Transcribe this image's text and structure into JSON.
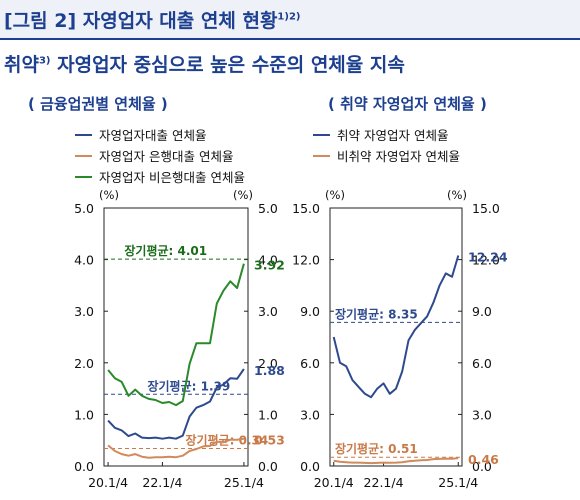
{
  "header": {
    "figure_title": "[그림 2] 자영업자 대출 연체 현황",
    "figure_title_note": "1)2)",
    "subtitle_pre": "취약",
    "subtitle_note": "3)",
    "subtitle_post": " 자영업자 중심으로 높은 수준의 연체율 지속"
  },
  "colors": {
    "accent": "#1d3f8f",
    "blue": "#2e4a8e",
    "orange": "#d08a5c",
    "green": "#2a8a2a",
    "dark_green": "#1a6b1a",
    "orange_text": "#c87a48"
  },
  "chart_data": [
    {
      "type": "line",
      "subtitle": "( 금융업권별  연체율 )",
      "y_unit_left": "(%)",
      "y_unit_right": "(%)",
      "ylim": [
        0,
        5
      ],
      "yticks": [
        "0.0",
        "1.0",
        "2.0",
        "3.0",
        "4.0",
        "5.0"
      ],
      "x_ticks": [
        {
          "x": 2020.0,
          "label": "20.1/4"
        },
        {
          "x": 2022.0,
          "label": "22.1/4"
        },
        {
          "x": 2025.0,
          "label": "25.1/4"
        }
      ],
      "xlim": [
        2019.85,
        2025.15
      ],
      "series": [
        {
          "name": "자영업자대출  연체율",
          "color_key": "blue",
          "x": [
            2020.0,
            2020.25,
            2020.5,
            2020.75,
            2021.0,
            2021.25,
            2021.5,
            2021.75,
            2022.0,
            2022.25,
            2022.5,
            2022.75,
            2023.0,
            2023.25,
            2023.5,
            2023.75,
            2024.0,
            2024.25,
            2024.5,
            2024.75,
            2025.0
          ],
          "values": [
            0.88,
            0.74,
            0.69,
            0.58,
            0.63,
            0.55,
            0.54,
            0.55,
            0.53,
            0.55,
            0.53,
            0.59,
            0.96,
            1.13,
            1.18,
            1.25,
            1.52,
            1.58,
            1.7,
            1.69,
            1.88
          ],
          "end_label": "1.88"
        },
        {
          "name": "자영업자 은행대출 연체율",
          "color_key": "orange",
          "x": [
            2020.0,
            2020.25,
            2020.5,
            2020.75,
            2021.0,
            2021.25,
            2021.5,
            2021.75,
            2022.0,
            2022.25,
            2022.5,
            2022.75,
            2023.0,
            2023.25,
            2023.5,
            2023.75,
            2024.0,
            2024.25,
            2024.5,
            2024.75,
            2025.0
          ],
          "values": [
            0.4,
            0.29,
            0.23,
            0.2,
            0.23,
            0.18,
            0.16,
            0.17,
            0.17,
            0.18,
            0.17,
            0.2,
            0.29,
            0.33,
            0.38,
            0.39,
            0.47,
            0.46,
            0.51,
            0.51,
            0.53
          ],
          "end_label": "0.53"
        },
        {
          "name": "자영업자 비은행대출 연체율",
          "color_key": "green",
          "x": [
            2020.0,
            2020.25,
            2020.5,
            2020.75,
            2021.0,
            2021.25,
            2021.5,
            2021.75,
            2022.0,
            2022.25,
            2022.5,
            2022.75,
            2023.0,
            2023.25,
            2023.5,
            2023.75,
            2024.0,
            2024.25,
            2024.5,
            2024.75,
            2025.0
          ],
          "values": [
            1.86,
            1.7,
            1.63,
            1.36,
            1.48,
            1.36,
            1.3,
            1.28,
            1.22,
            1.24,
            1.18,
            1.26,
            1.98,
            2.38,
            2.38,
            2.38,
            3.15,
            3.4,
            3.58,
            3.45,
            3.92
          ],
          "end_label": "3.92"
        }
      ],
      "reference_lines": [
        {
          "value": 4.01,
          "label": "장기평균: 4.01",
          "color_key": "dark_green",
          "label_x": 2020.6
        },
        {
          "value": 1.39,
          "label": "장기평균: 1.39",
          "color_key": "blue",
          "label_x": 2021.45
        },
        {
          "value": 0.34,
          "label": "장기평균: 0.34",
          "color_key": "orange_text",
          "label_x": 2022.85
        }
      ]
    },
    {
      "type": "line",
      "subtitle": "( 취약  자영업자  연체율 )",
      "y_unit_left": "(%)",
      "y_unit_right": "(%)",
      "ylim": [
        0,
        15
      ],
      "yticks": [
        "0.0",
        "3.0",
        "6.0",
        "9.0",
        "12.0",
        "15.0"
      ],
      "x_ticks": [
        {
          "x": 2020.0,
          "label": "20.1/4"
        },
        {
          "x": 2022.0,
          "label": "22.1/4"
        },
        {
          "x": 2025.0,
          "label": "25.1/4"
        }
      ],
      "xlim": [
        2019.85,
        2025.15
      ],
      "series": [
        {
          "name": "취약  자영업자  연체율",
          "color_key": "blue",
          "x": [
            2020.0,
            2020.25,
            2020.5,
            2020.75,
            2021.0,
            2021.25,
            2021.5,
            2021.75,
            2022.0,
            2022.25,
            2022.5,
            2022.75,
            2023.0,
            2023.25,
            2023.5,
            2023.75,
            2024.0,
            2024.25,
            2024.5,
            2024.75,
            2025.0
          ],
          "values": [
            7.5,
            6.0,
            5.8,
            5.0,
            4.6,
            4.2,
            4.0,
            4.5,
            4.8,
            4.2,
            4.5,
            5.5,
            7.3,
            7.9,
            8.3,
            8.7,
            9.5,
            10.5,
            11.2,
            11.0,
            12.24
          ],
          "end_label": "12.24"
        },
        {
          "name": "비취약  자영업자  연체율",
          "color_key": "orange",
          "x": [
            2020.0,
            2020.25,
            2020.5,
            2020.75,
            2021.0,
            2021.25,
            2021.5,
            2021.75,
            2022.0,
            2022.25,
            2022.5,
            2022.75,
            2023.0,
            2023.25,
            2023.5,
            2023.75,
            2024.0,
            2024.25,
            2024.5,
            2024.75,
            2025.0
          ],
          "values": [
            0.3,
            0.25,
            0.22,
            0.2,
            0.2,
            0.18,
            0.17,
            0.18,
            0.2,
            0.19,
            0.2,
            0.22,
            0.28,
            0.3,
            0.33,
            0.35,
            0.4,
            0.41,
            0.43,
            0.42,
            0.46
          ],
          "end_label": "0.46"
        }
      ],
      "reference_lines": [
        {
          "value": 8.35,
          "label": "장기평균: 8.35",
          "color_key": "blue",
          "label_x": 2020.05
        },
        {
          "value": 0.51,
          "label": "장기평균: 0.51",
          "color_key": "orange_text",
          "label_x": 2020.05
        }
      ]
    }
  ]
}
